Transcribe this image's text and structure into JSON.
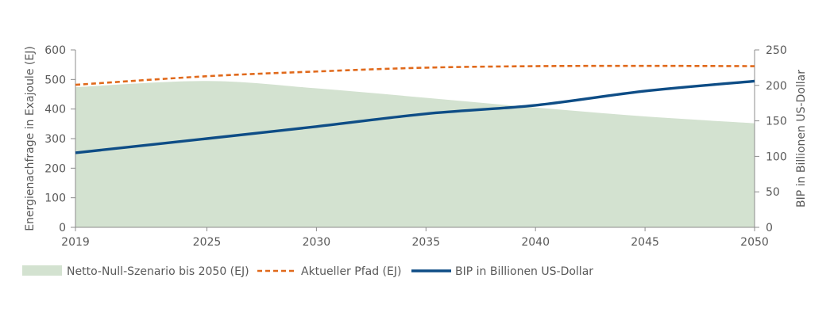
{
  "chart_data": {
    "type": "area+line",
    "title": "",
    "x": [
      2019,
      2025,
      2030,
      2035,
      2040,
      2045,
      2050
    ],
    "xticks": [
      "2019",
      "2025",
      "2030",
      "2035",
      "2040",
      "2045",
      "2050"
    ],
    "y_left": {
      "label": "Energienachfrage in Exajoule (EJ)",
      "lim": [
        0,
        600
      ],
      "ticks": [
        "0",
        "100",
        "200",
        "300",
        "400",
        "500",
        "600"
      ]
    },
    "y_right": {
      "label": "BIP in Billionen US-Dollar",
      "lim": [
        0,
        250
      ],
      "ticks": [
        "0",
        "50",
        "100",
        "150",
        "200",
        "250"
      ]
    },
    "series": [
      {
        "name": "Netto-Null-Szenario bis 2050 (EJ)",
        "kind": "area",
        "axis": "left",
        "color": "#d3e2d0",
        "values": [
          474,
          495,
          470,
          438,
          405,
          375,
          352
        ]
      },
      {
        "name": "Aktueller Pfad (EJ)",
        "kind": "line",
        "style": "dashed",
        "axis": "left",
        "color": "#e0691b",
        "values": [
          482,
          511,
          527,
          540,
          545,
          546,
          545
        ]
      },
      {
        "name": "BIP in Billionen US-Dollar",
        "kind": "line",
        "style": "solid",
        "axis": "right",
        "color": "#0e4d86",
        "values": [
          105,
          125,
          142,
          160,
          172,
          192,
          206
        ]
      }
    ],
    "legend_position": "bottom-left"
  }
}
